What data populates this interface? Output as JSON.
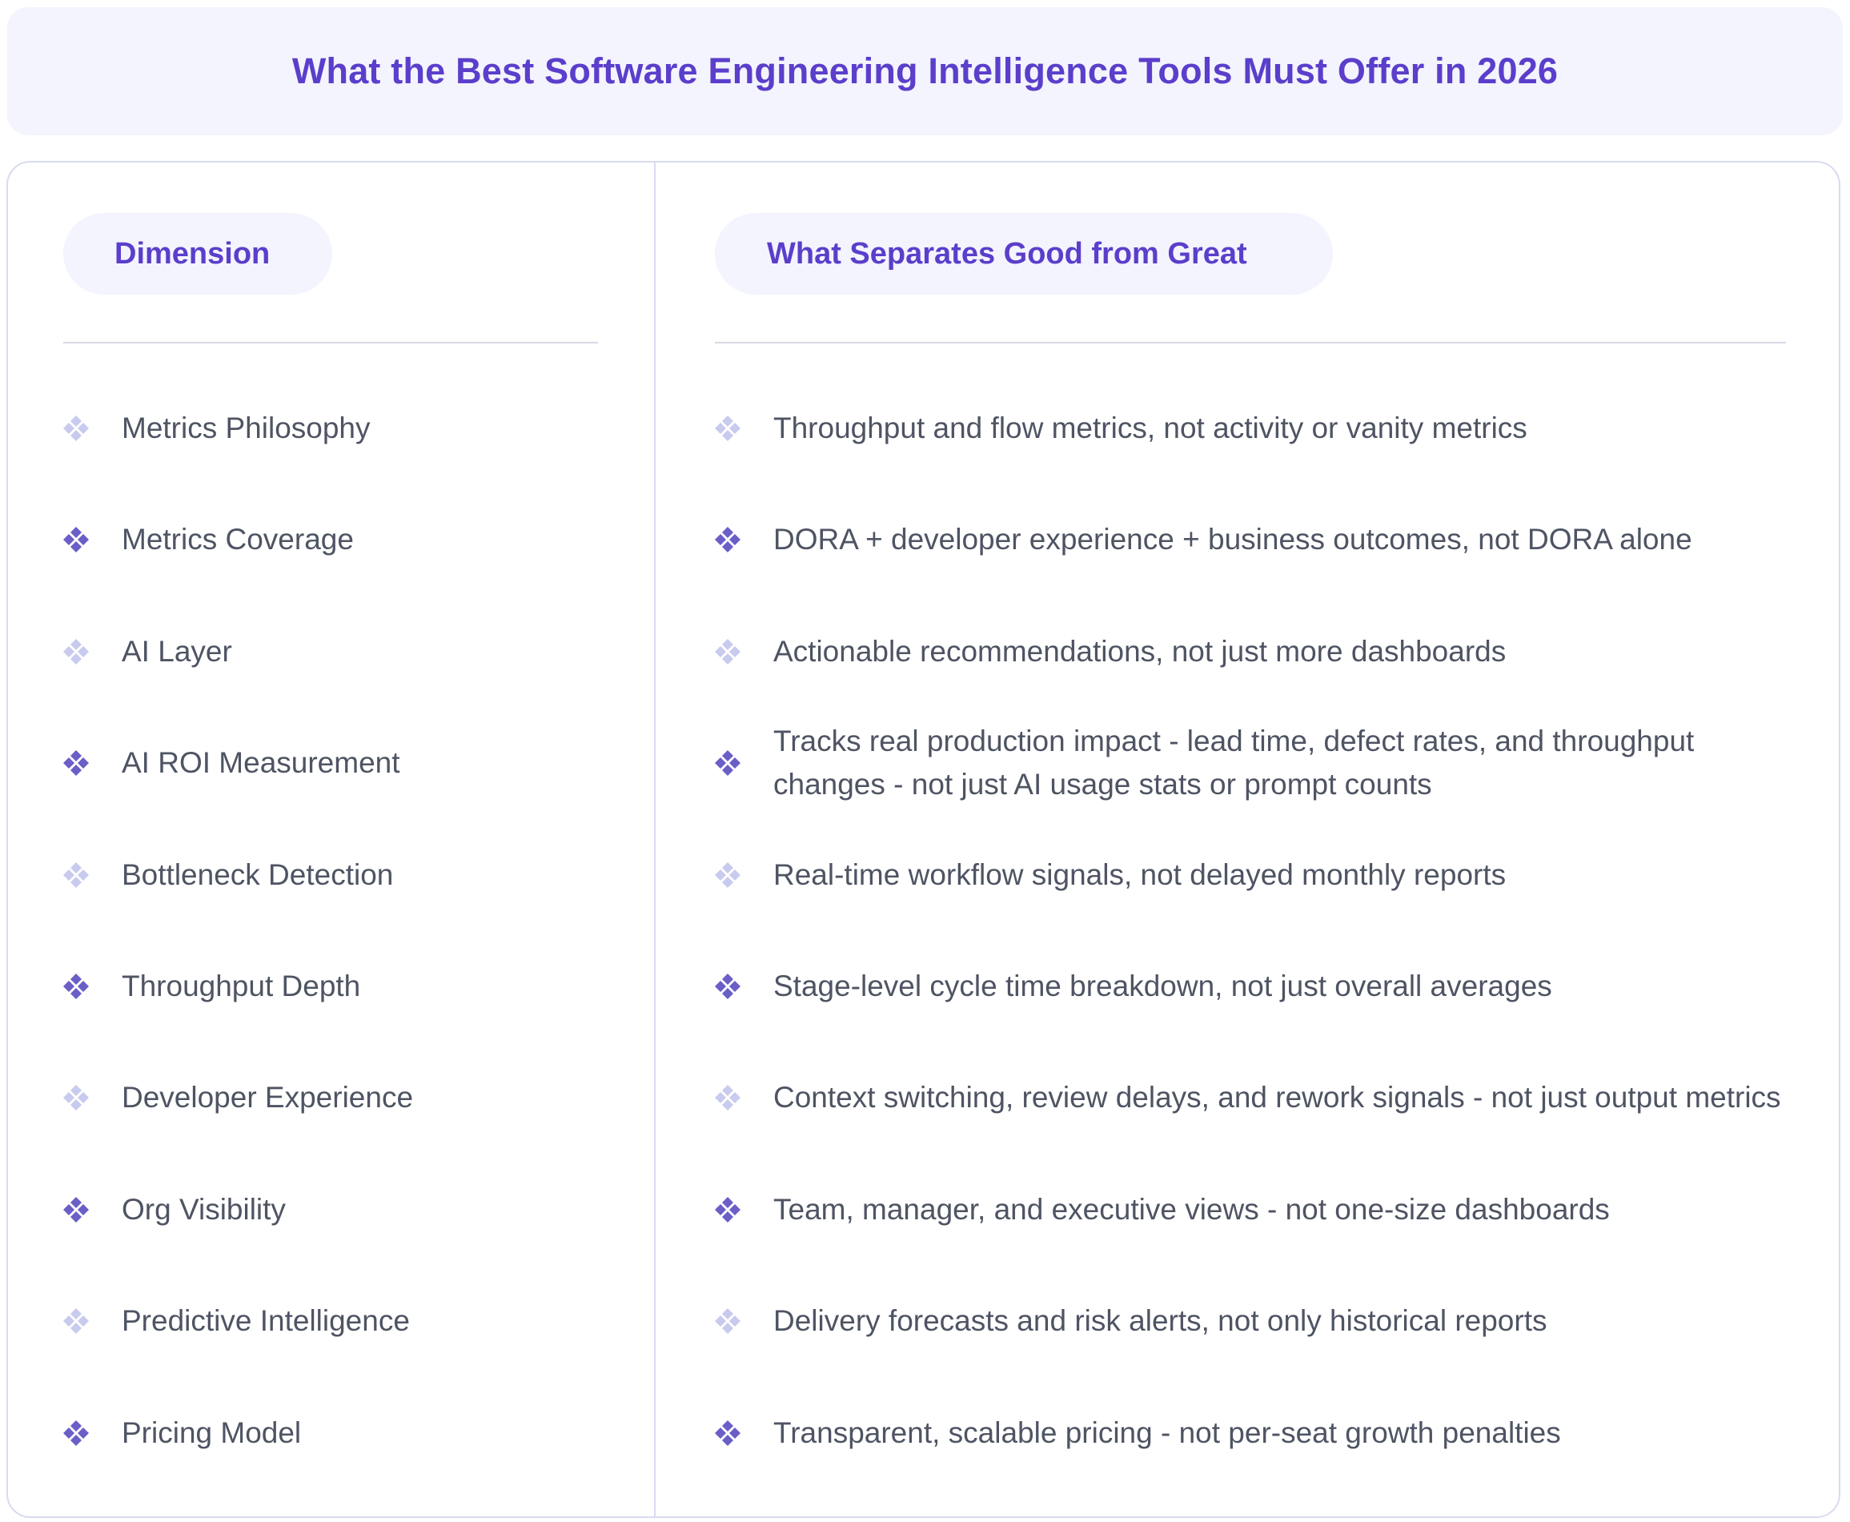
{
  "title": "What the Best Software Engineering Intelligence Tools Must Offer in 2026",
  "headers": {
    "dimension": "Dimension",
    "great": "What Separates Good from Great"
  },
  "colors": {
    "accent": "#5b3ecb",
    "icon_dark": "#6a5ec7",
    "icon_light": "#c8cbee",
    "panel_bg": "#f3f4fd",
    "text": "#4e5463",
    "border": "#d8dbef"
  },
  "icons": {
    "bullet": "diamond-cluster-icon"
  },
  "rows": [
    {
      "dimension": "Metrics Philosophy",
      "great": "Throughput and flow metrics, not activity or vanity metrics",
      "icon_variant": "light"
    },
    {
      "dimension": "Metrics Coverage",
      "great": "DORA + developer experience + business outcomes, not DORA alone",
      "icon_variant": "dark"
    },
    {
      "dimension": "AI Layer",
      "great": "Actionable recommendations, not just more dashboards",
      "icon_variant": "light"
    },
    {
      "dimension": "AI ROI Measurement",
      "great": "Tracks real production impact - lead time, defect rates, and throughput changes - not just AI usage stats or prompt counts",
      "icon_variant": "dark"
    },
    {
      "dimension": "Bottleneck Detection",
      "great": "Real-time workflow signals, not delayed monthly reports",
      "icon_variant": "light"
    },
    {
      "dimension": "Throughput Depth",
      "great": "Stage-level cycle time breakdown, not just overall averages",
      "icon_variant": "dark"
    },
    {
      "dimension": "Developer Experience",
      "great": "Context switching, review delays, and rework signals - not just output metrics",
      "icon_variant": "light"
    },
    {
      "dimension": "Org Visibility",
      "great": "Team, manager, and executive views - not one-size dashboards",
      "icon_variant": "dark"
    },
    {
      "dimension": "Predictive Intelligence",
      "great": "Delivery forecasts and risk alerts, not only historical reports",
      "icon_variant": "light"
    },
    {
      "dimension": "Pricing Model",
      "great": "Transparent, scalable pricing - not per-seat growth penalties",
      "icon_variant": "dark"
    }
  ]
}
